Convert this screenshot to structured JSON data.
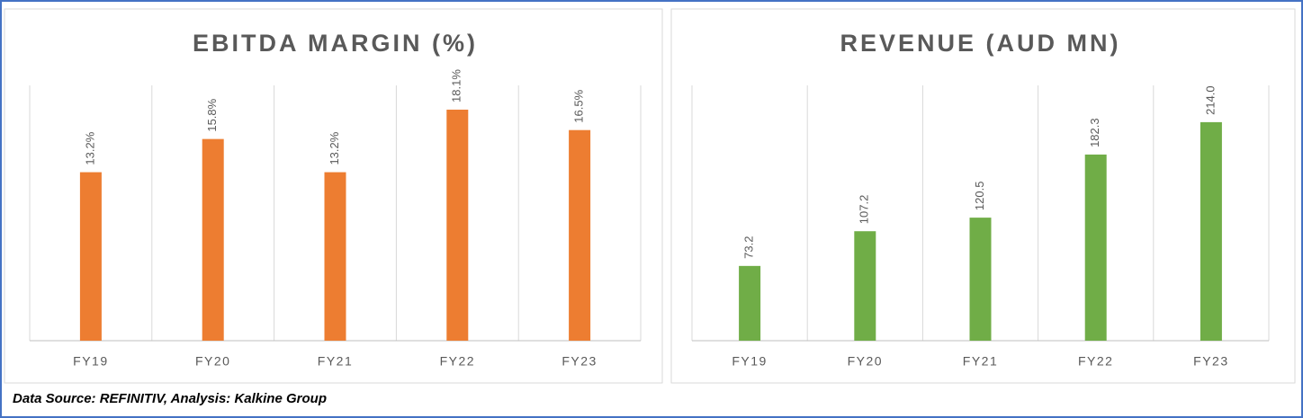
{
  "chart_data": [
    {
      "type": "bar",
      "title": "EBITDA MARGIN (%)",
      "categories": [
        "FY19",
        "FY20",
        "FY21",
        "FY22",
        "FY23"
      ],
      "values": [
        13.2,
        15.8,
        13.2,
        18.1,
        16.5
      ],
      "value_labels": [
        "13.2%",
        "15.8%",
        "13.2%",
        "18.1%",
        "16.5%"
      ],
      "color": "#ed7d31",
      "ylim": [
        0,
        20
      ],
      "grid": true
    },
    {
      "type": "bar",
      "title": "REVENUE (AUD MN)",
      "categories": [
        "FY19",
        "FY20",
        "FY21",
        "FY22",
        "FY23"
      ],
      "values": [
        73.2,
        107.2,
        120.5,
        182.3,
        214.0
      ],
      "value_labels": [
        "73.2",
        "107.2",
        "120.5",
        "182.3",
        "214.0"
      ],
      "color": "#70ad47",
      "ylim": [
        0,
        250
      ],
      "grid": true
    }
  ],
  "source": "Data Source: REFINITIV, Analysis: Kalkine Group"
}
